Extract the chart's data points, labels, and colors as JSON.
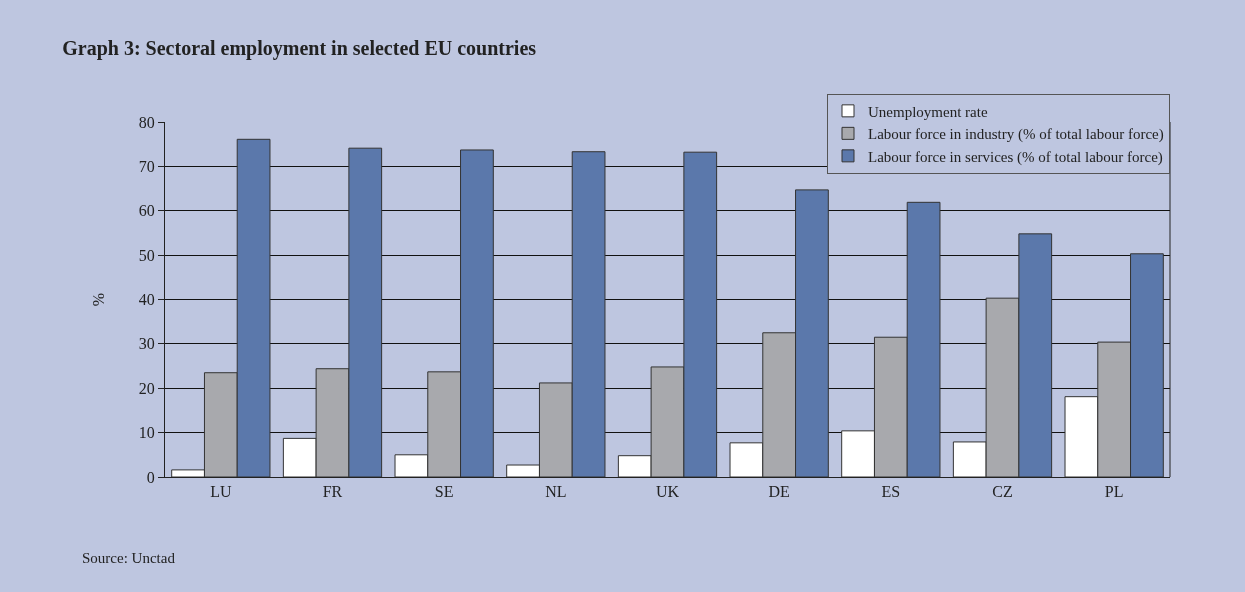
{
  "chart_data": {
    "type": "bar",
    "title": "Graph 3: Sectoral employment in selected EU countries",
    "ylabel": "%",
    "annotations": [
      "Source: Unctad"
    ],
    "categories": [
      "LU",
      "FR",
      "SE",
      "NL",
      "UK",
      "DE",
      "ES",
      "CZ",
      "PL"
    ],
    "series": [
      {
        "name": "Unemployment rate",
        "color": "#ffffff",
        "values": [
          1.6,
          8.7,
          5.0,
          2.7,
          4.8,
          7.7,
          10.4,
          7.9,
          18.1
        ]
      },
      {
        "name": "Labour force in industry (% of total labour force)",
        "color": "#a8a9ad",
        "values": [
          23.5,
          24.4,
          23.7,
          21.2,
          24.8,
          32.5,
          31.5,
          40.3,
          30.4
        ]
      },
      {
        "name": "Labour force in services (% of total labour force)",
        "color": "#5b78ab",
        "values": [
          76.1,
          74.1,
          73.7,
          73.3,
          73.2,
          64.7,
          61.9,
          54.8,
          50.3
        ]
      }
    ],
    "ylim": [
      0,
      80
    ],
    "yticks": [
      0,
      10,
      20,
      30,
      40,
      50,
      60,
      70,
      80
    ],
    "grid": "y",
    "legend": "top right"
  }
}
